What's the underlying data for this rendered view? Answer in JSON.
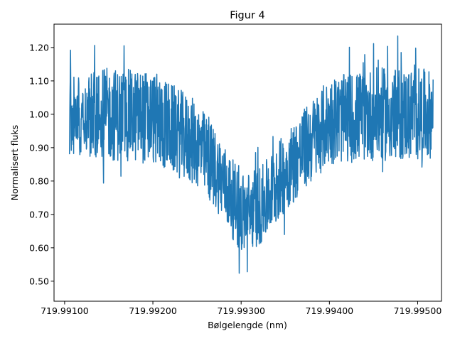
{
  "chart_data": {
    "type": "line",
    "title": "Figur 4",
    "xlabel": "Bølgelengde (nm)",
    "ylabel": "Normalisert fluks",
    "xlim": [
      719.99088,
      719.99527
    ],
    "ylim": [
      0.44,
      1.27
    ],
    "xticks": [
      719.991,
      719.992,
      719.993,
      719.994,
      719.995
    ],
    "xtick_labels": [
      "719.99100",
      "719.99200",
      "719.99300",
      "719.99400",
      "719.99500"
    ],
    "yticks": [
      0.5,
      0.6,
      0.7,
      0.8,
      0.9,
      1.0,
      1.1,
      1.2
    ],
    "ytick_labels": [
      "0.50",
      "0.60",
      "0.70",
      "0.80",
      "0.90",
      "1.00",
      "1.10",
      "1.20"
    ],
    "grid": false,
    "legend": "none",
    "color": "#1f77b4",
    "series": [
      {
        "x_start": 719.991055,
        "x_end": 719.995175,
        "n_points": 1400,
        "x": [
          719.991055,
          719.9915,
          719.992,
          719.9925,
          719.99275,
          719.993,
          719.99325,
          719.9935,
          719.994,
          719.9945,
          719.995,
          719.995175
        ],
        "center": [
          1.0,
          1.0,
          0.99,
          0.91,
          0.82,
          0.7,
          0.73,
          0.83,
          0.98,
          1.0,
          1.0,
          1.0
        ],
        "amplitude": [
          0.12,
          0.14,
          0.14,
          0.13,
          0.12,
          0.12,
          0.12,
          0.12,
          0.13,
          0.14,
          0.14,
          0.13
        ]
      }
    ]
  }
}
